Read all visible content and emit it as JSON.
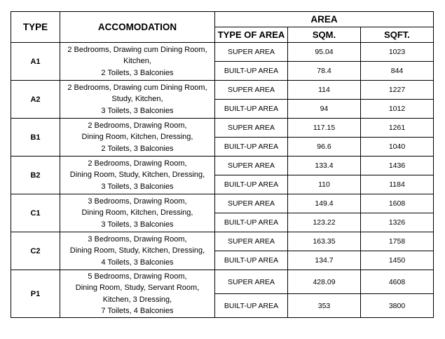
{
  "headers": {
    "type": "TYPE",
    "accommodation": "ACCOMODATION",
    "area": "AREA",
    "type_of_area": "TYPE OF AREA",
    "sqm": "SQM.",
    "sqft": "SQFT."
  },
  "rows": [
    {
      "type": "A1",
      "accommodation_lines": [
        "2 Bedrooms, Drawing cum Dining Room,",
        "Kitchen,",
        "2 Toilets, 3 Balconies"
      ],
      "areas": [
        {
          "label": "SUPER AREA",
          "sqm": "95.04",
          "sqft": "1023"
        },
        {
          "label": "BUILT-UP AREA",
          "sqm": "78.4",
          "sqft": "844"
        }
      ]
    },
    {
      "type": "A2",
      "accommodation_lines": [
        "2 Bedrooms, Drawing cum Dining Room,",
        "Study, Kitchen,",
        "3 Toilets, 3 Balconies"
      ],
      "areas": [
        {
          "label": "SUPER AREA",
          "sqm": "114",
          "sqft": "1227"
        },
        {
          "label": "BUILT-UP AREA",
          "sqm": "94",
          "sqft": "1012"
        }
      ]
    },
    {
      "type": "B1",
      "accommodation_lines": [
        "2 Bedrooms, Drawing Room,",
        "Dining Room, Kitchen, Dressing,",
        "2 Toilets, 3 Balconies"
      ],
      "areas": [
        {
          "label": "SUPER AREA",
          "sqm": "117.15",
          "sqft": "1261"
        },
        {
          "label": "BUILT-UP AREA",
          "sqm": "96.6",
          "sqft": "1040"
        }
      ]
    },
    {
      "type": "B2",
      "accommodation_lines": [
        "2 Bedrooms, Drawing Room,",
        "Dining Room, Study, Kitchen, Dressing,",
        "3 Toilets, 3 Balconies"
      ],
      "areas": [
        {
          "label": "SUPER AREA",
          "sqm": "133.4",
          "sqft": "1436"
        },
        {
          "label": "BUILT-UP AREA",
          "sqm": "110",
          "sqft": "1184"
        }
      ]
    },
    {
      "type": "C1",
      "accommodation_lines": [
        "3 Bedrooms, Drawing Room,",
        "Dining Room, Kitchen, Dressing,",
        "3 Toilets, 3 Balconies"
      ],
      "areas": [
        {
          "label": "SUPER AREA",
          "sqm": "149.4",
          "sqft": "1608"
        },
        {
          "label": "BUILT-UP AREA",
          "sqm": "123.22",
          "sqft": "1326"
        }
      ]
    },
    {
      "type": "C2",
      "accommodation_lines": [
        "3 Bedrooms, Drawing Room,",
        "Dining Room, Study, Kitchen, Dressing,",
        "4 Toilets, 3 Balconies"
      ],
      "areas": [
        {
          "label": "SUPER AREA",
          "sqm": "163.35",
          "sqft": "1758"
        },
        {
          "label": "BUILT-UP AREA",
          "sqm": "134.7",
          "sqft": "1450"
        }
      ]
    },
    {
      "type": "P1",
      "accommodation_lines": [
        "5 Bedrooms, Drawing Room,",
        "Dining Room, Study, Servant Room,",
        "Kitchen, 3 Dressing,",
        "7 Toilets, 4 Balconies"
      ],
      "areas": [
        {
          "label": "SUPER AREA",
          "sqm": "428.09",
          "sqft": "4608"
        },
        {
          "label": "BUILT-UP AREA",
          "sqm": "353",
          "sqft": "3800"
        }
      ]
    }
  ]
}
